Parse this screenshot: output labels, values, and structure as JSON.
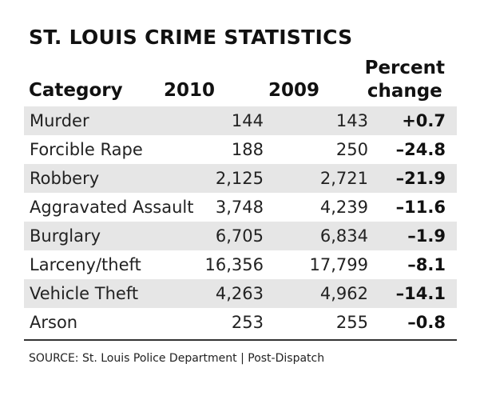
{
  "chart_data": {
    "type": "table",
    "title": "ST. LOUIS CRIME STATISTICS",
    "columns": [
      "Category",
      "2010",
      "2009",
      "Percent change"
    ],
    "rows": [
      {
        "category": "Murder",
        "y2010": "144",
        "y2009": "143",
        "pct": "+0.7"
      },
      {
        "category": "Forcible Rape",
        "y2010": "188",
        "y2009": "250",
        "pct": "–24.8"
      },
      {
        "category": "Robbery",
        "y2010": "2,125",
        "y2009": "2,721",
        "pct": "–21.9"
      },
      {
        "category": "Aggravated Assault",
        "y2010": "3,748",
        "y2009": "4,239",
        "pct": "–11.6"
      },
      {
        "category": "Burglary",
        "y2010": "6,705",
        "y2009": "6,834",
        "pct": "–1.9"
      },
      {
        "category": "Larceny/theft",
        "y2010": "16,356",
        "y2009": "17,799",
        "pct": "–8.1"
      },
      {
        "category": "Vehicle Theft",
        "y2010": "4,263",
        "y2009": "4,962",
        "pct": "–14.1"
      },
      {
        "category": "Arson",
        "y2010": "253",
        "y2009": "255",
        "pct": "–0.8"
      }
    ],
    "source": "SOURCE: St. Louis Police Department  |  Post-Dispatch"
  },
  "header": {
    "category": "Category",
    "y2010": "2010",
    "y2009": "2009",
    "pct_line1": "Percent",
    "pct_line2": "change"
  },
  "colors": {
    "row_shade": "#e6e6e6",
    "text": "#1a1a1a"
  }
}
